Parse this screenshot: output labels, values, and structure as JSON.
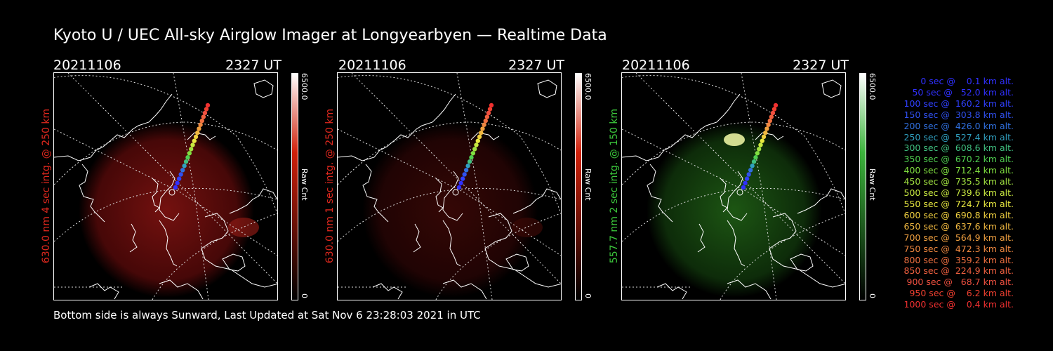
{
  "title": "Kyoto U / UEC All-sky Airglow Imager at Longyearbyen — Realtime Data",
  "footer": "Bottom side is always Sunward, Last Updated at Sat Nov  6 23:28:03 2021 in UTC",
  "panels": [
    {
      "date": "20211106",
      "time": "2327 UT",
      "label": "630.0 nm 4 sec intg. @ 250 km",
      "label_color": "#e0281e",
      "cbar_max": "6500.0",
      "cbar_unit": "Raw Cnt",
      "cbar_min": "0",
      "cbar_color": "#d0200a"
    },
    {
      "date": "20211106",
      "time": "2327 UT",
      "label": "630.0 nm 1 sec intg. @ 250 km",
      "label_color": "#e0281e",
      "cbar_max": "6500.0",
      "cbar_unit": "Raw Cnt",
      "cbar_min": "0",
      "cbar_color": "#d0200a"
    },
    {
      "date": "20211106",
      "time": "2327 UT",
      "label": "557.7 nm 2 sec intg. @ 150 km",
      "label_color": "#3cc83c",
      "cbar_max": "6500.0",
      "cbar_unit": "Raw Cnt",
      "cbar_min": "0",
      "cbar_color": "#3cb43c"
    }
  ],
  "legend": [
    {
      "text": "   0 sec @    0.1 km alt.",
      "color": "#3030ff"
    },
    {
      "text": "  50 sec @   52.0 km alt.",
      "color": "#3030ff"
    },
    {
      "text": " 100 sec @  160.2 km alt.",
      "color": "#3040ff"
    },
    {
      "text": " 150 sec @  303.8 km alt.",
      "color": "#3050f0"
    },
    {
      "text": " 200 sec @  426.0 km alt.",
      "color": "#3070e0"
    },
    {
      "text": " 250 sec @  527.4 km alt.",
      "color": "#30a0c0"
    },
    {
      "text": " 300 sec @  608.6 km alt.",
      "color": "#40c080"
    },
    {
      "text": " 350 sec @  670.2 km alt.",
      "color": "#50d050"
    },
    {
      "text": " 400 sec @  712.4 km alt.",
      "color": "#80e040"
    },
    {
      "text": " 450 sec @  735.5 km alt.",
      "color": "#a0e040"
    },
    {
      "text": " 500 sec @  739.6 km alt.",
      "color": "#c8e840"
    },
    {
      "text": " 550 sec @  724.7 km alt.",
      "color": "#e8e840"
    },
    {
      "text": " 600 sec @  690.8 km alt.",
      "color": "#f0d040"
    },
    {
      "text": " 650 sec @  637.6 km alt.",
      "color": "#f0b840"
    },
    {
      "text": " 700 sec @  564.9 km alt.",
      "color": "#f0a040"
    },
    {
      "text": " 750 sec @  472.3 km alt.",
      "color": "#f08840"
    },
    {
      "text": " 800 sec @  359.2 km alt.",
      "color": "#f07040"
    },
    {
      "text": " 850 sec @  224.9 km alt.",
      "color": "#f06040"
    },
    {
      "text": " 900 sec @   68.7 km alt.",
      "color": "#f05040"
    },
    {
      "text": " 950 sec @    6.2 km alt.",
      "color": "#f04030"
    },
    {
      "text": "1000 sec @    0.4 km alt.",
      "color": "#f03030"
    }
  ]
}
